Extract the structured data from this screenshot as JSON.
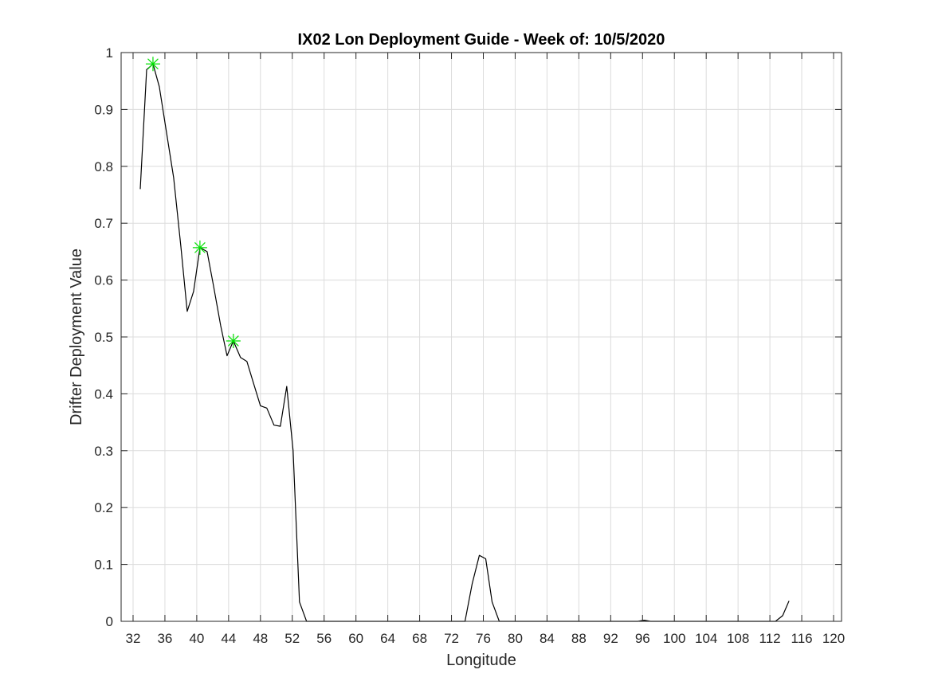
{
  "chart_data": {
    "type": "line",
    "title": "IX02 Lon Deployment Guide - Week of: 10/5/2020",
    "xlabel": "Longitude",
    "ylabel": "Drifter Deployment Value",
    "xlim": [
      30.5,
      121
    ],
    "ylim": [
      0,
      1
    ],
    "xticks": [
      32,
      36,
      40,
      44,
      48,
      52,
      56,
      60,
      64,
      68,
      72,
      76,
      80,
      84,
      88,
      92,
      96,
      100,
      104,
      108,
      112,
      116,
      120
    ],
    "xtick_labels": [
      "32",
      "36",
      "40",
      "44",
      "48",
      "52",
      "56",
      "60",
      "64",
      "68",
      "72",
      "76",
      "80",
      "84",
      "88",
      "92",
      "96",
      "100",
      "104",
      "108",
      "112",
      "116",
      "120"
    ],
    "yticks": [
      0,
      0.1,
      0.2,
      0.3,
      0.4,
      0.5,
      0.6,
      0.7,
      0.8,
      0.9,
      1
    ],
    "ytick_labels": [
      "0",
      "0.1",
      "0.2",
      "0.3",
      "0.4",
      "0.5",
      "0.6",
      "0.7",
      "0.8",
      "0.9",
      "1"
    ],
    "grid": true,
    "series": [
      {
        "color": "#000000",
        "x": [
          32.9,
          33.7,
          34.5,
          35.3,
          36.2,
          37.1,
          38.0,
          38.8,
          39.6,
          40.4,
          41.3,
          42.1,
          43.0,
          43.8,
          44.6,
          45.5,
          46.3,
          47.1,
          48.0,
          48.8,
          49.7,
          50.5,
          51.3,
          52.1,
          52.9,
          53.8,
          54.6,
          55.4,
          56.3,
          57.1,
          58.0,
          59.0,
          60.0,
          62.0,
          64.0,
          66.0,
          68.0,
          70.0,
          72.0,
          72.8,
          73.7,
          74.6,
          75.5,
          76.3,
          77.1,
          78.0,
          78.8,
          80.0,
          84.0,
          88.0,
          92.0,
          94.5,
          95.4,
          96.2,
          97.0,
          100.0,
          104.0,
          108.0,
          111.9,
          112.7,
          113.6,
          114.4
        ],
        "y": [
          0.76,
          0.97,
          0.98,
          0.94,
          0.86,
          0.78,
          0.66,
          0.545,
          0.58,
          0.657,
          0.65,
          0.59,
          0.52,
          0.467,
          0.493,
          0.464,
          0.457,
          0.42,
          0.379,
          0.375,
          0.345,
          0.343,
          0.413,
          0.3,
          0.034,
          0.0,
          0.0,
          0.0,
          0.0,
          0.0,
          0.0,
          0.0,
          0.0,
          0.0,
          0.0,
          0.0,
          0.0,
          0.0,
          0.0,
          0.0,
          0.0,
          0.066,
          0.116,
          0.11,
          0.034,
          0.0,
          0.0,
          0.0,
          0.0,
          0.0,
          0.0,
          0.0,
          0.0,
          0.002,
          0.0,
          0.0,
          0.0,
          0.0,
          0.0,
          0.0,
          0.01,
          0.036
        ]
      }
    ],
    "markers": {
      "symbol": "asterisk",
      "color": "#00e000",
      "points": [
        {
          "x": 34.5,
          "y": 0.98
        },
        {
          "x": 40.4,
          "y": 0.657
        },
        {
          "x": 44.6,
          "y": 0.493
        }
      ]
    }
  }
}
